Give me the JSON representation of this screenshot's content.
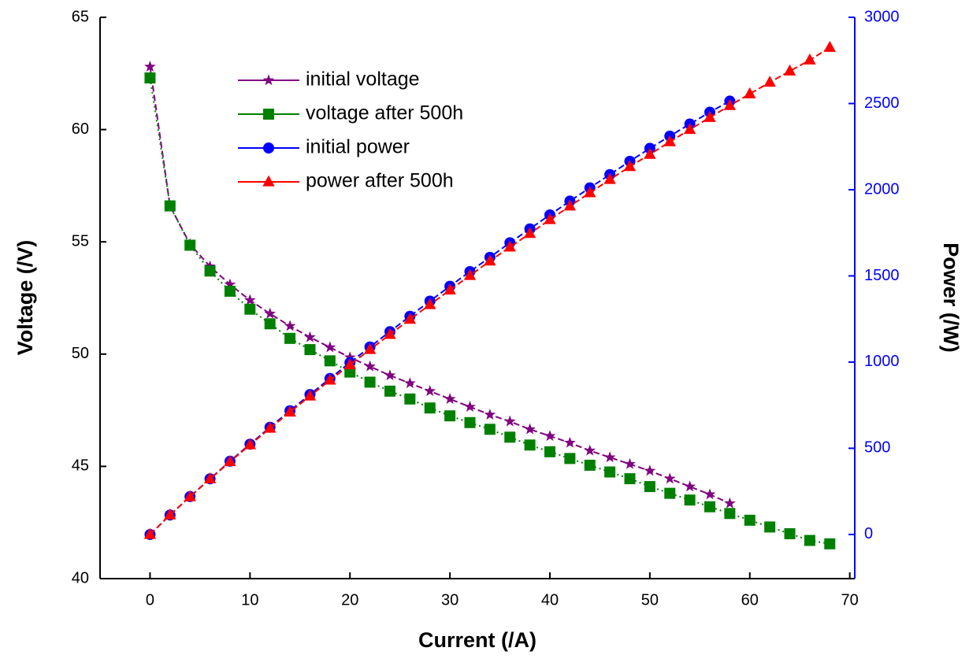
{
  "chart_data": {
    "type": "line",
    "x_label": "Current (/A)",
    "y_label": "Voltage (/V)",
    "y2_label": "Power (/W)",
    "xlim": [
      -5,
      70.5
    ],
    "xticks": [
      0,
      10,
      20,
      30,
      40,
      50,
      60,
      70
    ],
    "ylim": [
      40,
      65
    ],
    "yticks": [
      40,
      45,
      50,
      55,
      60,
      65
    ],
    "y2lim": [
      -256,
      3000
    ],
    "y2ticks": [
      0,
      500,
      1000,
      1500,
      2000,
      2500,
      3000
    ],
    "y2_color": "#0000ff",
    "legend": "upper-left",
    "series": [
      {
        "name": "initial voltage",
        "color": "#800080",
        "marker": "star",
        "dash": "8,4",
        "x": [
          0,
          2,
          4,
          6,
          8,
          10,
          12,
          14,
          16,
          18,
          20,
          22,
          24,
          26,
          28,
          30,
          32,
          34,
          36,
          38,
          40,
          42,
          44,
          46,
          48,
          50,
          52,
          54,
          56,
          58
        ],
        "values": [
          62.8,
          56.6,
          54.9,
          53.9,
          53.1,
          52.4,
          51.8,
          51.25,
          50.75,
          50.3,
          49.85,
          49.45,
          49.05,
          48.7,
          48.35,
          48.0,
          47.65,
          47.3,
          47.0,
          46.65,
          46.35,
          46.05,
          45.7,
          45.4,
          45.1,
          44.8,
          44.45,
          44.1,
          43.75,
          43.35
        ]
      },
      {
        "name": "voltage after 500h",
        "color": "#008000",
        "marker": "square",
        "dash": "2,4",
        "x": [
          0,
          2,
          4,
          6,
          8,
          10,
          12,
          14,
          16,
          18,
          20,
          22,
          24,
          26,
          28,
          30,
          32,
          34,
          36,
          38,
          40,
          42,
          44,
          46,
          48,
          50,
          52,
          54,
          56,
          58,
          60,
          62,
          64,
          66,
          68
        ],
        "values": [
          62.3,
          56.6,
          54.85,
          53.7,
          52.8,
          52.0,
          51.35,
          50.7,
          50.2,
          49.7,
          49.2,
          48.75,
          48.35,
          48.0,
          47.6,
          47.25,
          46.95,
          46.65,
          46.3,
          45.95,
          45.65,
          45.35,
          45.05,
          44.75,
          44.45,
          44.1,
          43.8,
          43.5,
          43.2,
          42.9,
          42.6,
          42.3,
          42.0,
          41.7,
          41.55
        ]
      },
      {
        "name": "initial power",
        "color": "#0000ff",
        "marker": "circle",
        "dash": "8,4",
        "axis": "y2",
        "x": [
          0,
          2,
          4,
          6,
          8,
          10,
          12,
          14,
          16,
          18,
          20,
          22,
          24,
          26,
          28,
          30,
          32,
          34,
          36,
          38,
          40,
          42,
          44,
          46,
          48,
          50,
          52,
          54,
          56,
          58
        ],
        "values": [
          0,
          113,
          220,
          323,
          425,
          524,
          622,
          718,
          812,
          905,
          997,
          1088,
          1177,
          1266,
          1354,
          1440,
          1525,
          1608,
          1692,
          1773,
          1854,
          1934,
          2011,
          2088,
          2165,
          2240,
          2311,
          2381,
          2450,
          2514
        ]
      },
      {
        "name": "power after 500h",
        "color": "#ff0000",
        "marker": "triangle",
        "dash": "8,4",
        "axis": "y2",
        "x": [
          0,
          2,
          4,
          6,
          8,
          10,
          12,
          14,
          16,
          18,
          20,
          22,
          24,
          26,
          28,
          30,
          32,
          34,
          36,
          38,
          40,
          42,
          44,
          46,
          48,
          50,
          52,
          54,
          56,
          58,
          60,
          62,
          64,
          66,
          68
        ],
        "values": [
          0,
          113,
          219,
          322,
          422,
          520,
          616,
          710,
          803,
          895,
          984,
          1073,
          1160,
          1248,
          1333,
          1418,
          1502,
          1586,
          1667,
          1746,
          1826,
          1905,
          1982,
          2059,
          2134,
          2205,
          2278,
          2349,
          2419,
          2488,
          2556,
          2623,
          2688,
          2752,
          2825
        ]
      }
    ]
  }
}
